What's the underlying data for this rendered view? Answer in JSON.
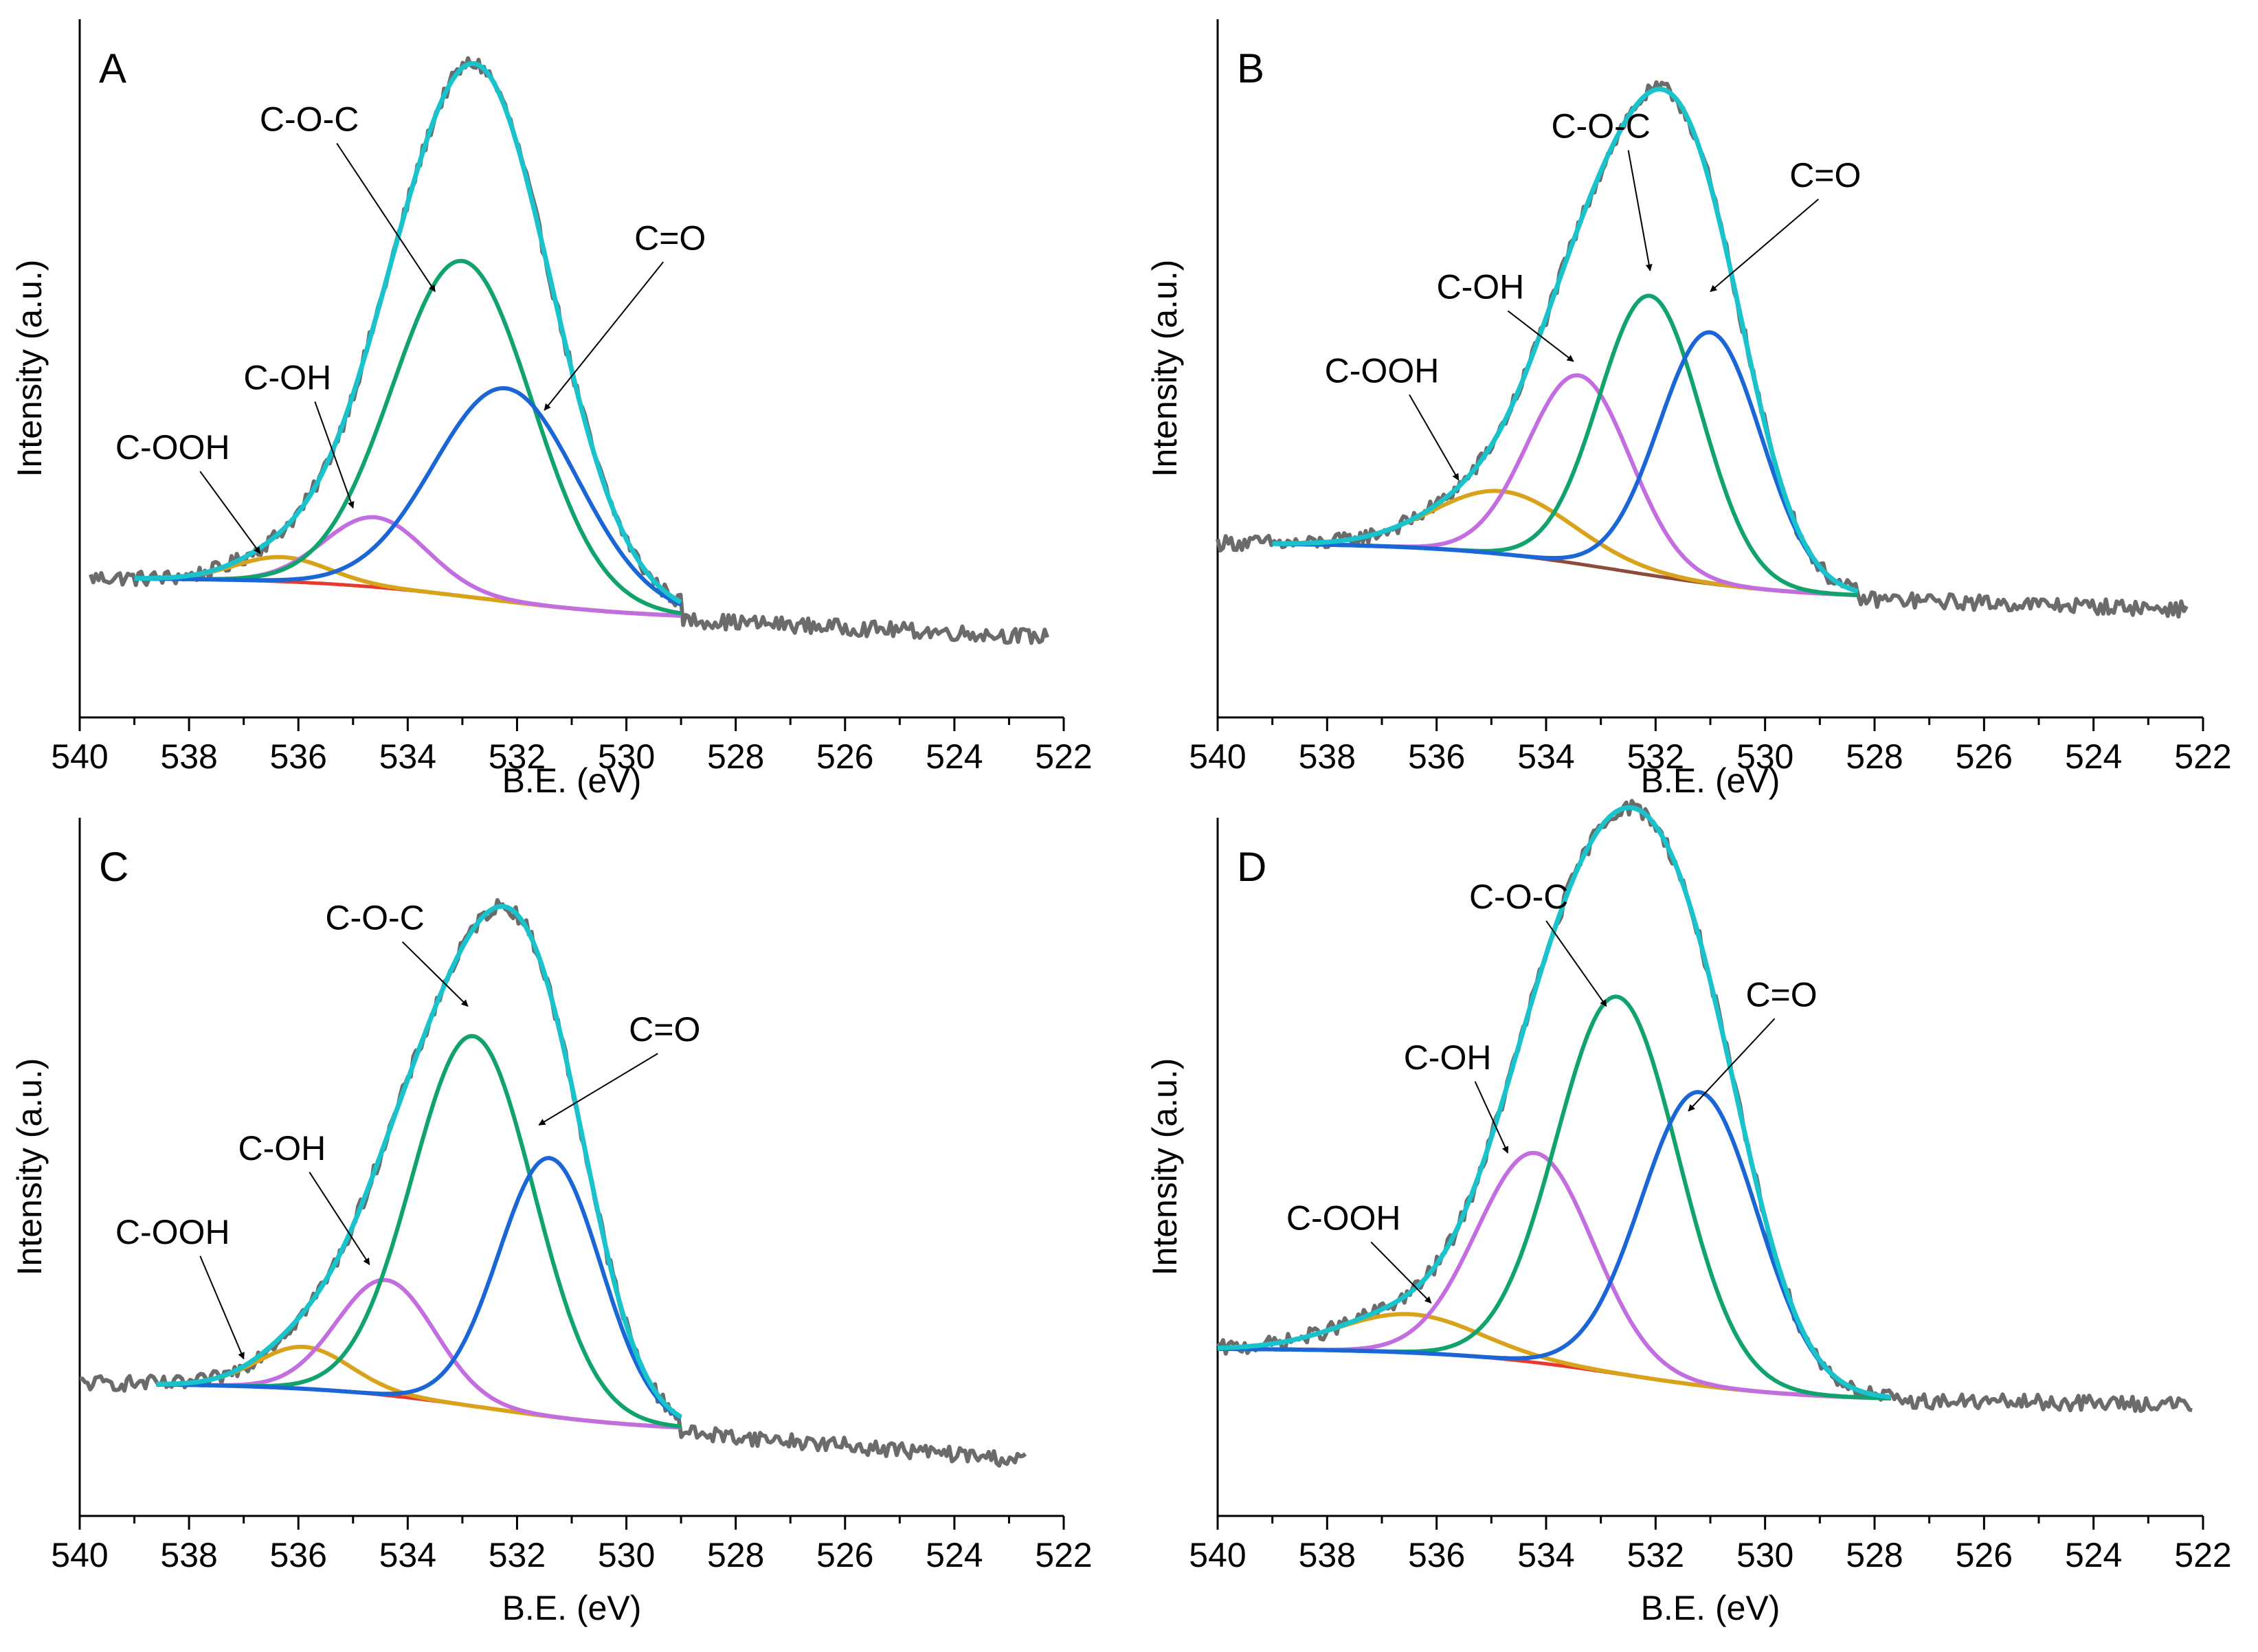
{
  "figure": {
    "x_axis_title": "B.E. (eV)",
    "y_axis_title": "Intensity (a.u.)"
  },
  "colors": {
    "raw": "#6b6b6b",
    "envelope": "#19c3cc",
    "C=O": "#1a66d6",
    "C-O-C": "#11a36c",
    "C-OH": "#c26ee0",
    "C-OOH": "#d9a21b",
    "background": "#e8392f",
    "background_B": "#8e4a3b"
  },
  "chart_data": [
    {
      "type": "line",
      "panel": "A",
      "title": "A",
      "xlabel": "B.E. (eV)",
      "ylabel": "Intensity (a.u.)",
      "xlim": [
        540,
        522
      ],
      "ylim": [
        0,
        1
      ],
      "xticks": [
        540,
        538,
        536,
        534,
        532,
        530,
        528,
        526,
        524,
        522
      ],
      "raw_range": [
        539.8,
        522.3
      ],
      "fit_range": [
        539.0,
        529.0
      ],
      "baseline": {
        "left": 0.2,
        "right": 0.14,
        "tail": 0.115
      },
      "components": [
        {
          "name": "C=O",
          "center": 532.2,
          "height": 0.305,
          "fwhm": 3.1
        },
        {
          "name": "C-O-C",
          "center": 533.0,
          "height": 0.48,
          "fwhm": 3.0
        },
        {
          "name": "C-OH",
          "center": 534.6,
          "height": 0.1,
          "fwhm": 2.2
        },
        {
          "name": "C-OOH",
          "center": 536.3,
          "height": 0.035,
          "fwhm": 2.0
        }
      ],
      "annotations": [
        {
          "label": "C-O-C",
          "text_x": 535.8,
          "text_y": 0.84,
          "arrow_x": 533.5,
          "arrow_y": 0.61
        },
        {
          "label": "C=O",
          "text_x": 529.2,
          "text_y": 0.67,
          "arrow_x": 531.5,
          "arrow_y": 0.44
        },
        {
          "label": "C-OH",
          "text_x": 536.2,
          "text_y": 0.47,
          "arrow_x": 535.0,
          "arrow_y": 0.3
        },
        {
          "label": "C-OOH",
          "text_x": 538.3,
          "text_y": 0.37,
          "arrow_x": 536.7,
          "arrow_y": 0.235
        }
      ]
    },
    {
      "type": "line",
      "panel": "B",
      "title": "B",
      "xlabel": "B.E. (eV)",
      "ylabel": "Intensity (a.u.)",
      "xlim": [
        540,
        522
      ],
      "ylim": [
        0,
        1
      ],
      "xticks": [
        540,
        538,
        536,
        534,
        532,
        530,
        528,
        526,
        524,
        522
      ],
      "raw_range": [
        540.0,
        522.3
      ],
      "fit_range": [
        539.0,
        528.3
      ],
      "baseline": {
        "left": 0.25,
        "right": 0.17,
        "tail": 0.155
      },
      "components": [
        {
          "name": "C=O",
          "center": 531.0,
          "height": 0.36,
          "fwhm": 2.2
        },
        {
          "name": "C-O-C",
          "center": 532.1,
          "height": 0.4,
          "fwhm": 2.2
        },
        {
          "name": "C-OH",
          "center": 533.4,
          "height": 0.27,
          "fwhm": 2.2
        },
        {
          "name": "C-OOH",
          "center": 534.8,
          "height": 0.09,
          "fwhm": 3.0
        }
      ],
      "annotations": [
        {
          "label": "C-O-C",
          "text_x": 533.0,
          "text_y": 0.83,
          "arrow_x": 532.1,
          "arrow_y": 0.64
        },
        {
          "label": "C=O",
          "text_x": 528.9,
          "text_y": 0.76,
          "arrow_x": 531.0,
          "arrow_y": 0.61
        },
        {
          "label": "C-OH",
          "text_x": 535.2,
          "text_y": 0.6,
          "arrow_x": 533.5,
          "arrow_y": 0.51
        },
        {
          "label": "C-OOH",
          "text_x": 537.0,
          "text_y": 0.48,
          "arrow_x": 535.6,
          "arrow_y": 0.34
        }
      ]
    },
    {
      "type": "line",
      "panel": "C",
      "title": "C",
      "xlabel": "B.E. (eV)",
      "ylabel": "Intensity (a.u.)",
      "xlim": [
        540,
        522
      ],
      "ylim": [
        0,
        1
      ],
      "xticks": [
        540,
        538,
        536,
        534,
        532,
        530,
        528,
        526,
        524,
        522
      ],
      "raw_range": [
        540.0,
        522.7
      ],
      "fit_range": [
        538.6,
        529.0
      ],
      "baseline": {
        "left": 0.19,
        "right": 0.12,
        "tail": 0.08
      },
      "components": [
        {
          "name": "C=O",
          "center": 531.4,
          "height": 0.37,
          "fwhm": 2.2
        },
        {
          "name": "C-O-C",
          "center": 532.8,
          "height": 0.53,
          "fwhm": 2.6
        },
        {
          "name": "C-OH",
          "center": 534.4,
          "height": 0.165,
          "fwhm": 2.1
        },
        {
          "name": "C-OOH",
          "center": 535.9,
          "height": 0.06,
          "fwhm": 2.0
        }
      ],
      "annotations": [
        {
          "label": "C-O-C",
          "text_x": 534.6,
          "text_y": 0.84,
          "arrow_x": 532.9,
          "arrow_y": 0.73
        },
        {
          "label": "C=O",
          "text_x": 529.3,
          "text_y": 0.68,
          "arrow_x": 531.6,
          "arrow_y": 0.56
        },
        {
          "label": "C-OH",
          "text_x": 536.3,
          "text_y": 0.51,
          "arrow_x": 534.7,
          "arrow_y": 0.36
        },
        {
          "label": "C-OOH",
          "text_x": 538.3,
          "text_y": 0.39,
          "arrow_x": 537.0,
          "arrow_y": 0.225
        }
      ]
    },
    {
      "type": "line",
      "panel": "D",
      "title": "D",
      "xlabel": "B.E. (eV)",
      "ylabel": "Intensity (a.u.)",
      "xlim": [
        540,
        522
      ],
      "ylim": [
        0,
        1
      ],
      "xticks": [
        540,
        538,
        536,
        534,
        532,
        530,
        528,
        526,
        524,
        522
      ],
      "raw_range": [
        540.0,
        522.2
      ],
      "fit_range": [
        540.0,
        527.7
      ],
      "baseline": {
        "left": 0.24,
        "right": 0.165,
        "tail": 0.16
      },
      "components": [
        {
          "name": "C=O",
          "center": 531.2,
          "height": 0.42,
          "fwhm": 2.5
        },
        {
          "name": "C-O-C",
          "center": 532.7,
          "height": 0.54,
          "fwhm": 2.6
        },
        {
          "name": "C-OH",
          "center": 534.2,
          "height": 0.3,
          "fwhm": 2.5
        },
        {
          "name": "C-OOH",
          "center": 536.5,
          "height": 0.055,
          "fwhm": 3.0
        }
      ],
      "annotations": [
        {
          "label": "C-O-C",
          "text_x": 534.5,
          "text_y": 0.87,
          "arrow_x": 532.9,
          "arrow_y": 0.73
        },
        {
          "label": "C=O",
          "text_x": 529.7,
          "text_y": 0.73,
          "arrow_x": 531.4,
          "arrow_y": 0.58
        },
        {
          "label": "C-OH",
          "text_x": 535.8,
          "text_y": 0.64,
          "arrow_x": 534.7,
          "arrow_y": 0.52
        },
        {
          "label": "C-OOH",
          "text_x": 537.7,
          "text_y": 0.41,
          "arrow_x": 536.1,
          "arrow_y": 0.305
        }
      ]
    }
  ]
}
